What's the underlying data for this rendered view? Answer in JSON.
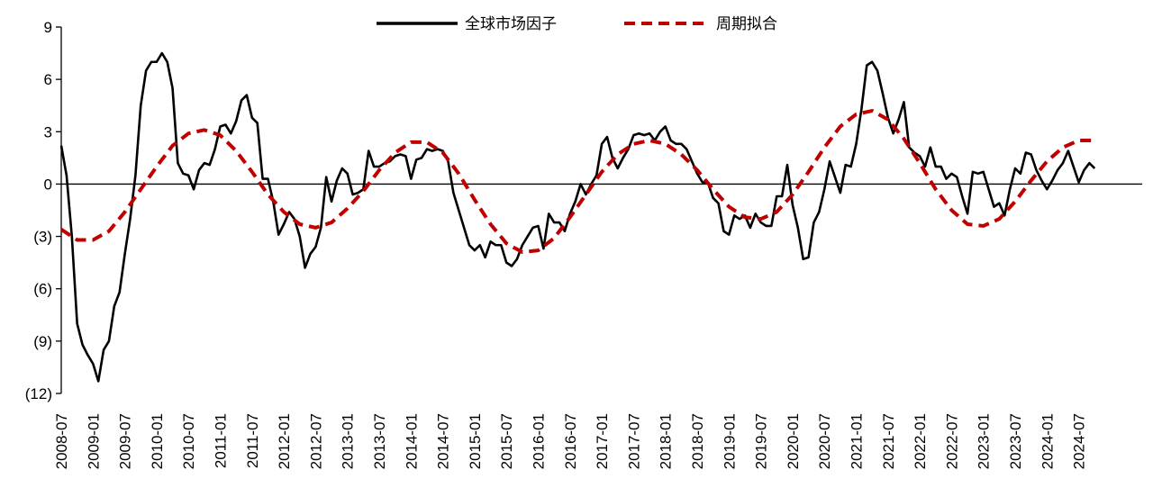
{
  "chart_data": {
    "type": "line",
    "title": "",
    "xlabel": "",
    "ylabel": "",
    "ylim": [
      -12,
      9
    ],
    "y_ticks": [
      9,
      6,
      3,
      0,
      -3,
      -6,
      -9,
      -12
    ],
    "y_tick_labels": [
      "9",
      "6",
      "3",
      "0",
      "(3)",
      "(6)",
      "(9)",
      "(12)"
    ],
    "x_tick_labels": [
      "2008-07",
      "2009-01",
      "2009-07",
      "2010-01",
      "2010-07",
      "2011-01",
      "2011-07",
      "2012-01",
      "2012-07",
      "2013-01",
      "2013-07",
      "2014-01",
      "2014-07",
      "2015-01",
      "2015-07",
      "2016-01",
      "2016-07",
      "2017-01",
      "2017-07",
      "2018-01",
      "2018-07",
      "2019-01",
      "2019-07",
      "2020-01",
      "2020-07",
      "2021-01",
      "2021-07",
      "2022-01",
      "2022-07",
      "2023-01",
      "2023-07",
      "2024-01",
      "2024-07"
    ],
    "x_start": "2008-07",
    "legend_position": "top-center",
    "grid": false,
    "series": [
      {
        "name": "全球市场因子",
        "color": "#000000",
        "style": "solid",
        "points": [
          [
            "2008-07",
            2.2
          ],
          [
            "2008-08",
            0.5
          ],
          [
            "2008-09",
            -3.0
          ],
          [
            "2008-10",
            -8.0
          ],
          [
            "2008-11",
            -9.2
          ],
          [
            "2008-12",
            -9.8
          ],
          [
            "2009-01",
            -10.3
          ],
          [
            "2009-02",
            -11.3
          ],
          [
            "2009-03",
            -9.5
          ],
          [
            "2009-04",
            -9.0
          ],
          [
            "2009-05",
            -7.0
          ],
          [
            "2009-06",
            -6.2
          ],
          [
            "2009-07",
            -4.0
          ],
          [
            "2009-08",
            -2.0
          ],
          [
            "2009-09",
            0.5
          ],
          [
            "2009-10",
            4.5
          ],
          [
            "2009-11",
            6.5
          ],
          [
            "2009-12",
            7.0
          ],
          [
            "2010-01",
            7.0
          ],
          [
            "2010-02",
            7.5
          ],
          [
            "2010-03",
            7.0
          ],
          [
            "2010-04",
            5.5
          ],
          [
            "2010-05",
            1.2
          ],
          [
            "2010-06",
            0.6
          ],
          [
            "2010-07",
            0.5
          ],
          [
            "2010-08",
            -0.3
          ],
          [
            "2010-09",
            0.8
          ],
          [
            "2010-10",
            1.2
          ],
          [
            "2010-11",
            1.1
          ],
          [
            "2010-12",
            2.0
          ],
          [
            "2011-01",
            3.3
          ],
          [
            "2011-02",
            3.4
          ],
          [
            "2011-03",
            2.9
          ],
          [
            "2011-04",
            3.6
          ],
          [
            "2011-05",
            4.8
          ],
          [
            "2011-06",
            5.1
          ],
          [
            "2011-07",
            3.8
          ],
          [
            "2011-08",
            3.5
          ],
          [
            "2011-09",
            0.3
          ],
          [
            "2011-10",
            0.3
          ],
          [
            "2011-11",
            -1.0
          ],
          [
            "2011-12",
            -2.9
          ],
          [
            "2012-01",
            -2.3
          ],
          [
            "2012-02",
            -1.6
          ],
          [
            "2012-03",
            -2.0
          ],
          [
            "2012-04",
            -3.0
          ],
          [
            "2012-05",
            -4.8
          ],
          [
            "2012-06",
            -4.0
          ],
          [
            "2012-07",
            -3.6
          ],
          [
            "2012-08",
            -2.5
          ],
          [
            "2012-09",
            0.4
          ],
          [
            "2012-10",
            -1.0
          ],
          [
            "2012-11",
            0.2
          ],
          [
            "2012-12",
            0.9
          ],
          [
            "2013-01",
            0.6
          ],
          [
            "2013-02",
            -0.6
          ],
          [
            "2013-03",
            -0.5
          ],
          [
            "2013-04",
            -0.3
          ],
          [
            "2013-05",
            1.9
          ],
          [
            "2013-06",
            1.0
          ],
          [
            "2013-07",
            1.0
          ],
          [
            "2013-08",
            1.2
          ],
          [
            "2013-09",
            1.3
          ],
          [
            "2013-10",
            1.6
          ],
          [
            "2013-11",
            1.7
          ],
          [
            "2013-12",
            1.6
          ],
          [
            "2014-01",
            0.3
          ],
          [
            "2014-02",
            1.4
          ],
          [
            "2014-03",
            1.5
          ],
          [
            "2014-04",
            2.0
          ],
          [
            "2014-05",
            1.9
          ],
          [
            "2014-06",
            2.0
          ],
          [
            "2014-07",
            1.9
          ],
          [
            "2014-08",
            1.3
          ],
          [
            "2014-09",
            -0.5
          ],
          [
            "2014-10",
            -1.5
          ],
          [
            "2014-11",
            -2.5
          ],
          [
            "2014-12",
            -3.5
          ],
          [
            "2015-01",
            -3.8
          ],
          [
            "2015-02",
            -3.5
          ],
          [
            "2015-03",
            -4.2
          ],
          [
            "2015-04",
            -3.3
          ],
          [
            "2015-05",
            -3.5
          ],
          [
            "2015-06",
            -3.5
          ],
          [
            "2015-07",
            -4.5
          ],
          [
            "2015-08",
            -4.7
          ],
          [
            "2015-09",
            -4.3
          ],
          [
            "2015-10",
            -3.5
          ],
          [
            "2015-11",
            -3.0
          ],
          [
            "2015-12",
            -2.5
          ],
          [
            "2016-01",
            -2.4
          ],
          [
            "2016-02",
            -3.7
          ],
          [
            "2016-03",
            -1.7
          ],
          [
            "2016-04",
            -2.2
          ],
          [
            "2016-05",
            -2.2
          ],
          [
            "2016-06",
            -2.7
          ],
          [
            "2016-07",
            -1.7
          ],
          [
            "2016-08",
            -1.0
          ],
          [
            "2016-09",
            0.0
          ],
          [
            "2016-10",
            -0.6
          ],
          [
            "2016-11",
            0.0
          ],
          [
            "2016-12",
            0.5
          ],
          [
            "2017-01",
            2.3
          ],
          [
            "2017-02",
            2.7
          ],
          [
            "2017-03",
            1.5
          ],
          [
            "2017-04",
            0.9
          ],
          [
            "2017-05",
            1.5
          ],
          [
            "2017-06",
            2.0
          ],
          [
            "2017-07",
            2.8
          ],
          [
            "2017-08",
            2.9
          ],
          [
            "2017-09",
            2.8
          ],
          [
            "2017-10",
            2.9
          ],
          [
            "2017-11",
            2.5
          ],
          [
            "2017-12",
            3.0
          ],
          [
            "2018-01",
            3.3
          ],
          [
            "2018-02",
            2.5
          ],
          [
            "2018-03",
            2.3
          ],
          [
            "2018-04",
            2.3
          ],
          [
            "2018-05",
            2.0
          ],
          [
            "2018-06",
            1.3
          ],
          [
            "2018-07",
            0.6
          ],
          [
            "2018-08",
            0.1
          ],
          [
            "2018-09",
            0.1
          ],
          [
            "2018-10",
            -0.8
          ],
          [
            "2018-11",
            -1.1
          ],
          [
            "2018-12",
            -2.7
          ],
          [
            "2019-01",
            -2.9
          ],
          [
            "2019-02",
            -1.8
          ],
          [
            "2019-03",
            -2.0
          ],
          [
            "2019-04",
            -1.8
          ],
          [
            "2019-05",
            -2.5
          ],
          [
            "2019-06",
            -1.7
          ],
          [
            "2019-07",
            -2.2
          ],
          [
            "2019-08",
            -2.4
          ],
          [
            "2019-09",
            -2.4
          ],
          [
            "2019-10",
            -0.7
          ],
          [
            "2019-11",
            -0.7
          ],
          [
            "2019-12",
            1.1
          ],
          [
            "2020-01",
            -1.2
          ],
          [
            "2020-02",
            -2.5
          ],
          [
            "2020-03",
            -4.3
          ],
          [
            "2020-04",
            -4.2
          ],
          [
            "2020-05",
            -2.2
          ],
          [
            "2020-06",
            -1.6
          ],
          [
            "2020-07",
            -0.3
          ],
          [
            "2020-08",
            1.3
          ],
          [
            "2020-09",
            0.4
          ],
          [
            "2020-10",
            -0.5
          ],
          [
            "2020-11",
            1.1
          ],
          [
            "2020-12",
            1.0
          ],
          [
            "2021-01",
            2.3
          ],
          [
            "2021-02",
            4.3
          ],
          [
            "2021-03",
            6.8
          ],
          [
            "2021-04",
            7.0
          ],
          [
            "2021-05",
            6.5
          ],
          [
            "2021-06",
            5.2
          ],
          [
            "2021-07",
            3.8
          ],
          [
            "2021-08",
            2.9
          ],
          [
            "2021-09",
            3.7
          ],
          [
            "2021-10",
            4.7
          ],
          [
            "2021-11",
            2.1
          ],
          [
            "2021-12",
            1.8
          ],
          [
            "2022-01",
            1.6
          ],
          [
            "2022-02",
            1.0
          ],
          [
            "2022-03",
            2.1
          ],
          [
            "2022-04",
            1.0
          ],
          [
            "2022-05",
            1.0
          ],
          [
            "2022-06",
            0.3
          ],
          [
            "2022-07",
            0.6
          ],
          [
            "2022-08",
            0.4
          ],
          [
            "2022-09",
            -0.7
          ],
          [
            "2022-10",
            -1.7
          ],
          [
            "2022-11",
            0.7
          ],
          [
            "2022-12",
            0.6
          ],
          [
            "2023-01",
            0.7
          ],
          [
            "2023-02",
            -0.3
          ],
          [
            "2023-03",
            -1.3
          ],
          [
            "2023-04",
            -1.1
          ],
          [
            "2023-05",
            -1.8
          ],
          [
            "2023-06",
            -0.3
          ],
          [
            "2023-07",
            0.9
          ],
          [
            "2023-08",
            0.6
          ],
          [
            "2023-09",
            1.8
          ],
          [
            "2023-10",
            1.7
          ],
          [
            "2023-11",
            0.8
          ],
          [
            "2023-12",
            0.2
          ],
          [
            "2024-01",
            -0.3
          ],
          [
            "2024-02",
            0.2
          ],
          [
            "2024-03",
            0.8
          ],
          [
            "2024-04",
            1.2
          ],
          [
            "2024-05",
            1.9
          ],
          [
            "2024-06",
            1.0
          ],
          [
            "2024-07",
            0.1
          ],
          [
            "2024-08",
            0.8
          ],
          [
            "2024-09",
            1.2
          ],
          [
            "2024-10",
            0.9
          ]
        ]
      },
      {
        "name": "周期拟合",
        "color": "#C00000",
        "style": "dashed",
        "points": [
          [
            "2008-07",
            -2.6
          ],
          [
            "2008-10",
            -3.2
          ],
          [
            "2009-01",
            -3.2
          ],
          [
            "2009-04",
            -2.7
          ],
          [
            "2009-07",
            -1.6
          ],
          [
            "2009-10",
            -0.3
          ],
          [
            "2010-01",
            1.0
          ],
          [
            "2010-04",
            2.2
          ],
          [
            "2010-07",
            2.9
          ],
          [
            "2010-10",
            3.1
          ],
          [
            "2011-01",
            2.8
          ],
          [
            "2011-04",
            1.9
          ],
          [
            "2011-07",
            0.7
          ],
          [
            "2011-10",
            -0.6
          ],
          [
            "2012-01",
            -1.6
          ],
          [
            "2012-04",
            -2.3
          ],
          [
            "2012-07",
            -2.5
          ],
          [
            "2012-10",
            -2.2
          ],
          [
            "2013-01",
            -1.4
          ],
          [
            "2013-04",
            -0.4
          ],
          [
            "2013-07",
            0.8
          ],
          [
            "2013-10",
            1.8
          ],
          [
            "2014-01",
            2.4
          ],
          [
            "2014-04",
            2.4
          ],
          [
            "2014-07",
            1.8
          ],
          [
            "2014-10",
            0.6
          ],
          [
            "2015-01",
            -0.9
          ],
          [
            "2015-04",
            -2.3
          ],
          [
            "2015-07",
            -3.4
          ],
          [
            "2015-10",
            -3.9
          ],
          [
            "2016-01",
            -3.8
          ],
          [
            "2016-04",
            -3.1
          ],
          [
            "2016-07",
            -1.9
          ],
          [
            "2016-10",
            -0.6
          ],
          [
            "2017-01",
            0.7
          ],
          [
            "2017-04",
            1.7
          ],
          [
            "2017-07",
            2.3
          ],
          [
            "2017-10",
            2.5
          ],
          [
            "2018-01",
            2.3
          ],
          [
            "2018-04",
            1.7
          ],
          [
            "2018-07",
            0.8
          ],
          [
            "2018-10",
            -0.3
          ],
          [
            "2019-01",
            -1.3
          ],
          [
            "2019-04",
            -1.9
          ],
          [
            "2019-07",
            -2.0
          ],
          [
            "2019-10",
            -1.6
          ],
          [
            "2020-01",
            -0.6
          ],
          [
            "2020-04",
            0.7
          ],
          [
            "2020-07",
            2.1
          ],
          [
            "2020-10",
            3.3
          ],
          [
            "2021-01",
            4.0
          ],
          [
            "2021-04",
            4.2
          ],
          [
            "2021-07",
            3.7
          ],
          [
            "2021-10",
            2.6
          ],
          [
            "2022-01",
            1.2
          ],
          [
            "2022-04",
            -0.3
          ],
          [
            "2022-07",
            -1.5
          ],
          [
            "2022-10",
            -2.3
          ],
          [
            "2023-01",
            -2.4
          ],
          [
            "2023-04",
            -2.0
          ],
          [
            "2023-07",
            -1.0
          ],
          [
            "2023-10",
            0.2
          ],
          [
            "2024-01",
            1.3
          ],
          [
            "2024-04",
            2.1
          ],
          [
            "2024-07",
            2.5
          ],
          [
            "2024-10",
            2.5
          ]
        ]
      }
    ]
  }
}
